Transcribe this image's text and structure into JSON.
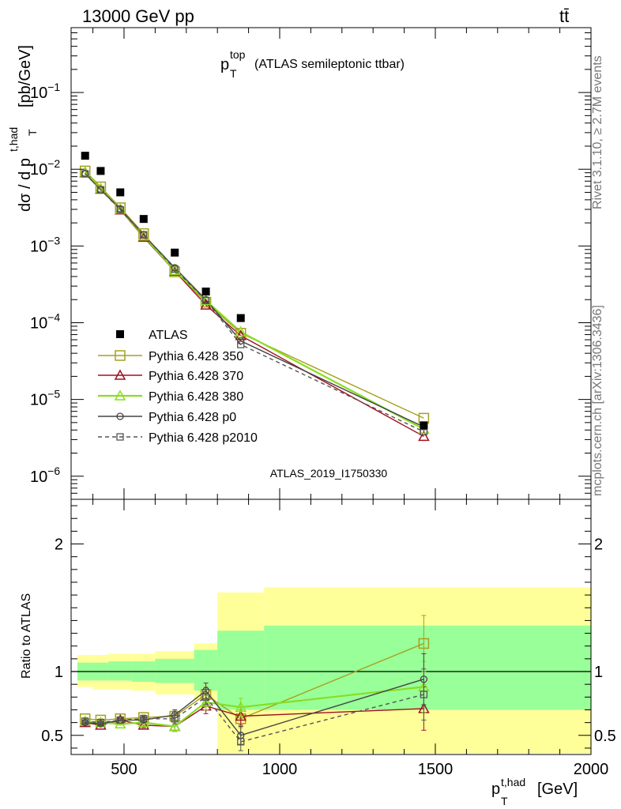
{
  "header": {
    "left": "13000 GeV pp",
    "right": "tt̄"
  },
  "side_labels": {
    "rivet": "Rivet 3.1.10, ≥ 2.7M events",
    "mcplots": "mcplots.cern.ch [arXiv:1306.3436]"
  },
  "watermark": "ATLAS_2019_I1750330",
  "colors": {
    "atlas": "#000000",
    "p350": "#a6a01e",
    "p370": "#a01020",
    "p380": "#88dd22",
    "p0": "#444444",
    "p2010": "#555555",
    "band_outer": "#ffff99",
    "band_inner": "#99ff99"
  },
  "chart_data": [
    {
      "type": "scatter",
      "title": {
        "main": "p",
        "sup": "top",
        "sub": "T",
        "rest": "(ATLAS semileptonic ttbar)"
      },
      "ylabel": "dσ / d p_T^{t,had} [pb/GeV]",
      "yscale": "log",
      "ylim": [
        5e-07,
        0.7
      ],
      "xlim": [
        330,
        2000
      ],
      "yticks": [
        {
          "v": 1e-06,
          "base": "10",
          "exp": "−6"
        },
        {
          "v": 1e-05,
          "base": "10",
          "exp": "−5"
        },
        {
          "v": 0.0001,
          "base": "10",
          "exp": "−4"
        },
        {
          "v": 0.001,
          "base": "10",
          "exp": "−3"
        },
        {
          "v": 0.01,
          "base": "10",
          "exp": "−2"
        },
        {
          "v": 0.1,
          "base": "10",
          "exp": "−1"
        }
      ],
      "x": [
        375,
        425,
        488,
        563,
        663,
        763,
        875,
        1463
      ],
      "series": [
        {
          "name": "ATLAS",
          "key": "atlas",
          "values": [
            0.015,
            0.0095,
            0.005,
            0.00225,
            0.00082,
            0.000255,
            0.000115,
            4.6e-06
          ]
        },
        {
          "name": "Pythia 6.428 350",
          "key": "p350",
          "values": [
            0.0095,
            0.0059,
            0.00315,
            0.00145,
            0.00046,
            0.000185,
            7.3e-05,
            5.7e-06
          ]
        },
        {
          "name": "Pythia 6.428 370",
          "key": "p370",
          "values": [
            0.009,
            0.0055,
            0.00295,
            0.0013,
            0.00047,
            0.00017,
            6.8e-05,
            3.3e-06
          ]
        },
        {
          "name": "Pythia 6.428 380",
          "key": "p380",
          "values": [
            0.0092,
            0.0056,
            0.003,
            0.00135,
            0.00048,
            0.000195,
            7.6e-05,
            4.1e-06
          ]
        },
        {
          "name": "Pythia 6.428 p0",
          "key": "p0",
          "values": [
            0.0088,
            0.0054,
            0.00305,
            0.0014,
            0.00052,
            0.0002,
            5.8e-05,
            4.4e-06
          ]
        },
        {
          "name": "Pythia 6.428 p2010",
          "key": "p2010",
          "values": [
            0.0087,
            0.0054,
            0.00295,
            0.0014,
            0.0005,
            0.000195,
            5.2e-05,
            3.8e-06
          ]
        }
      ]
    },
    {
      "type": "scatter",
      "ylabel": "Ratio to ATLAS",
      "ylim": [
        0.35,
        2.35
      ],
      "xlim": [
        330,
        2000
      ],
      "xlabel": "p_T^{t,had} [GeV]",
      "xticks": [
        {
          "v": 500,
          "label": "500"
        },
        {
          "v": 1000,
          "label": "1000"
        },
        {
          "v": 1500,
          "label": "1500"
        },
        {
          "v": 2000,
          "label": "2000"
        }
      ],
      "yticks": [
        {
          "v": 0.5,
          "label": "0.5"
        },
        {
          "v": 1,
          "label": "1"
        },
        {
          "v": 2,
          "label": "2"
        }
      ],
      "bins": [
        350,
        400,
        450,
        525,
        600,
        725,
        800,
        950,
        2000
      ],
      "band_outer": [
        [
          0.88,
          1.13
        ],
        [
          0.86,
          1.13
        ],
        [
          0.86,
          1.14
        ],
        [
          0.85,
          1.14
        ],
        [
          0.82,
          1.16
        ],
        [
          0.78,
          1.22
        ],
        [
          0.36,
          1.62
        ],
        [
          0.36,
          1.66
        ]
      ],
      "band_inner": [
        [
          0.93,
          1.07
        ],
        [
          0.93,
          1.07
        ],
        [
          0.93,
          1.08
        ],
        [
          0.92,
          1.08
        ],
        [
          0.91,
          1.1
        ],
        [
          0.85,
          1.17
        ],
        [
          0.7,
          1.32
        ],
        [
          0.7,
          1.36
        ]
      ],
      "x": [
        375,
        425,
        488,
        563,
        663,
        763,
        875,
        1463
      ],
      "series": [
        {
          "key": "p350",
          "values": [
            0.63,
            0.62,
            0.63,
            0.64,
            0.65,
            0.82,
            0.63,
            1.22
          ],
          "errors": [
            0.01,
            0.01,
            0.01,
            0.02,
            0.04,
            0.06,
            0.07,
            0.22
          ]
        },
        {
          "key": "p370",
          "values": [
            0.6,
            0.58,
            0.62,
            0.58,
            0.57,
            0.73,
            0.65,
            0.71
          ],
          "errors": [
            0.01,
            0.01,
            0.01,
            0.02,
            0.04,
            0.06,
            0.07,
            0.17
          ]
        },
        {
          "key": "p380",
          "values": [
            0.61,
            0.6,
            0.59,
            0.6,
            0.57,
            0.76,
            0.72,
            0.88
          ],
          "errors": [
            0.01,
            0.01,
            0.01,
            0.02,
            0.04,
            0.06,
            0.07,
            0.2
          ]
        },
        {
          "key": "p0",
          "values": [
            0.6,
            0.59,
            0.62,
            0.62,
            0.66,
            0.85,
            0.5,
            0.94
          ],
          "errors": [
            0.01,
            0.01,
            0.01,
            0.02,
            0.04,
            0.06,
            0.07,
            0.2
          ]
        },
        {
          "key": "p2010",
          "values": [
            0.61,
            0.6,
            0.62,
            0.63,
            0.63,
            0.8,
            0.45,
            0.82
          ],
          "errors": [
            0.01,
            0.01,
            0.01,
            0.02,
            0.04,
            0.06,
            0.07,
            0.2
          ]
        }
      ]
    }
  ]
}
